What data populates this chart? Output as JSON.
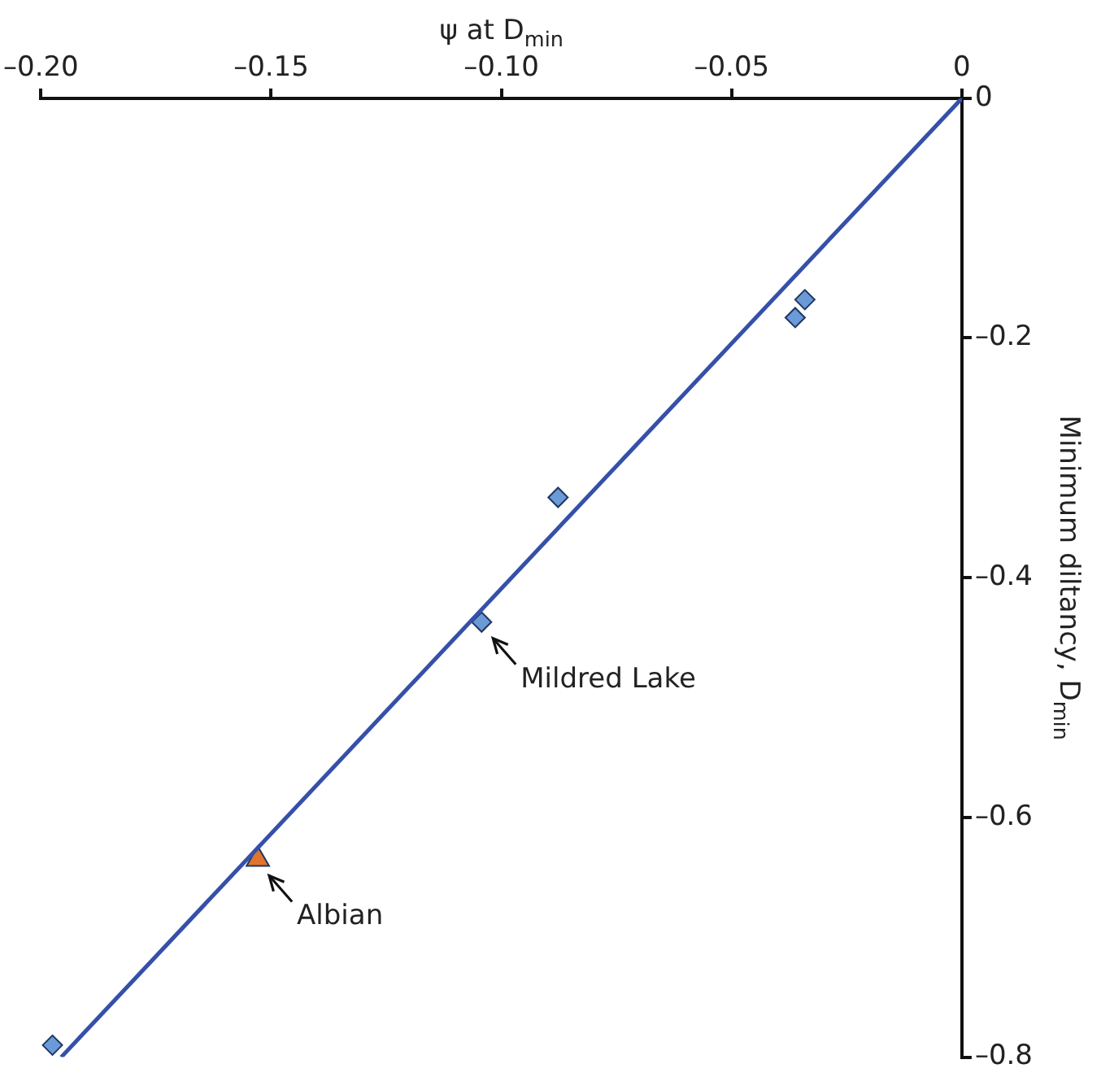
{
  "chart_data": {
    "type": "scatter",
    "xlabel": "ψ at D$_{min}$",
    "ylabel": "Minimum diltancy, D$_{min}$",
    "xlim": [
      -0.2,
      0
    ],
    "xticks": [
      {
        "value": -0.2,
        "label": "–0.20"
      },
      {
        "value": -0.15,
        "label": "–0.15"
      },
      {
        "value": -0.1,
        "label": "–0.10"
      },
      {
        "value": -0.05,
        "label": "–0.05"
      },
      0
    ],
    "ylim": [
      -0.8,
      0
    ],
    "yticks": [
      {
        "value": -0.8,
        "label": "–0.8"
      },
      {
        "value": -0.6,
        "label": "–0.6"
      },
      {
        "value": -0.4,
        "label": "–0.4"
      },
      {
        "value": -0.2,
        "label": "–0.2"
      },
      0
    ],
    "series": [
      {
        "type": "line",
        "color": "#3550a8",
        "marker": "none",
        "line_style": "solid",
        "x": [
          0,
          -0.1956
        ],
        "values": [
          0,
          -0.8
        ]
      },
      {
        "type": "scatter",
        "color": "#6a9ad8",
        "marker": "diamond",
        "x": [
          -0.0341,
          -0.0362,
          -0.0877,
          -0.1043,
          -0.1975
        ],
        "values": [
          -0.168,
          -0.183,
          -0.333,
          -0.437,
          -0.79
        ]
      },
      {
        "type": "scatter",
        "color": "#e0742e",
        "marker": "triangle",
        "x": [
          -0.1529
        ],
        "values": [
          -0.635
        ]
      }
    ],
    "annotations": [
      {
        "text": "Mildred Lake",
        "x": -0.1043,
        "y": -0.437
      },
      {
        "text": "Albian",
        "x": -0.1529,
        "y": -0.635
      }
    ]
  }
}
